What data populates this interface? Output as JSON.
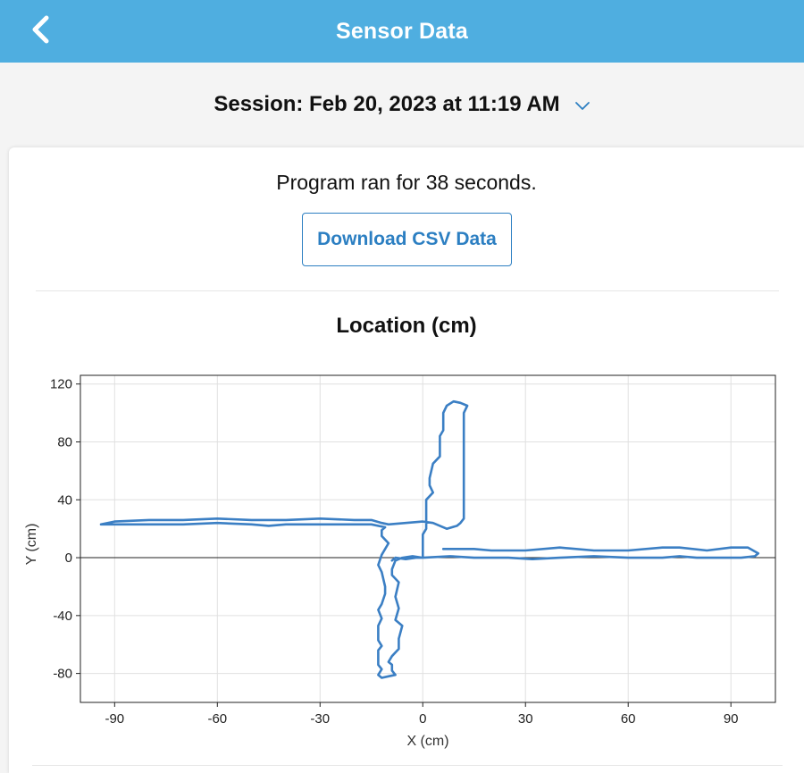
{
  "header": {
    "title": "Sensor Data",
    "back_icon": "chevron-left-icon"
  },
  "session": {
    "label": "Session: Feb 20, 2023 at 11:19 AM",
    "dropdown_icon": "chevron-down-icon"
  },
  "summary": {
    "run_text": "Program ran for 38 seconds."
  },
  "actions": {
    "download_label": "Download CSV Data"
  },
  "colors": {
    "header_bg": "#4faee0",
    "accent": "#2c7fc2",
    "line": "#3b7fc4"
  },
  "chart_data": {
    "type": "line",
    "title": "Location (cm)",
    "xlabel": "X (cm)",
    "ylabel": "Y (cm)",
    "xlim": [
      -100,
      103
    ],
    "ylim": [
      -100,
      126
    ],
    "xticks": [
      -90,
      -60,
      -30,
      0,
      30,
      60,
      90
    ],
    "yticks": [
      -80,
      -40,
      0,
      40,
      80,
      120
    ],
    "grid": true,
    "zero_line": true,
    "series": [
      {
        "points": [
          [
            6,
            6
          ],
          [
            15,
            6
          ],
          [
            20,
            5
          ],
          [
            30,
            5
          ],
          [
            40,
            7
          ],
          [
            50,
            5
          ],
          [
            60,
            5
          ],
          [
            70,
            7
          ],
          [
            75,
            7
          ],
          [
            83,
            5
          ],
          [
            90,
            7
          ],
          [
            95,
            7
          ],
          [
            98,
            3
          ],
          [
            97,
            1
          ],
          [
            93,
            0
          ],
          [
            90,
            0
          ],
          [
            80,
            0
          ],
          [
            75,
            1
          ],
          [
            70,
            0
          ],
          [
            60,
            0
          ],
          [
            50,
            1
          ],
          [
            40,
            0
          ],
          [
            32,
            -1
          ],
          [
            25,
            0
          ],
          [
            15,
            0
          ],
          [
            8,
            1
          ],
          [
            0,
            0
          ],
          [
            -3,
            1
          ],
          [
            -6,
            0
          ],
          [
            -8,
            -2
          ],
          [
            -9,
            -8
          ],
          [
            -9,
            -12
          ],
          [
            -7,
            -17
          ],
          [
            -8,
            -27
          ],
          [
            -7,
            -35
          ],
          [
            -8,
            -43
          ],
          [
            -6,
            -47
          ],
          [
            -7,
            -56
          ],
          [
            -7,
            -63
          ],
          [
            -9,
            -68
          ],
          [
            -10,
            -72
          ],
          [
            -9,
            -74
          ],
          [
            -9,
            -78
          ],
          [
            -8,
            -81
          ],
          [
            -10,
            -82
          ],
          [
            -12,
            -83
          ],
          [
            -13,
            -81
          ],
          [
            -12,
            -77
          ],
          [
            -13,
            -74
          ],
          [
            -13,
            -68
          ],
          [
            -13,
            -64
          ],
          [
            -12,
            -61
          ],
          [
            -13,
            -57
          ],
          [
            -13,
            -47
          ],
          [
            -12,
            -42
          ],
          [
            -13,
            -36
          ],
          [
            -12,
            -32
          ],
          [
            -11,
            -25
          ],
          [
            -11,
            -20
          ],
          [
            -12,
            -10
          ],
          [
            -13,
            -5
          ],
          [
            -12,
            2
          ],
          [
            -10,
            10
          ],
          [
            -12,
            15
          ],
          [
            -12,
            19
          ],
          [
            -11,
            21
          ],
          [
            -15,
            23
          ],
          [
            -20,
            23
          ],
          [
            -30,
            23
          ],
          [
            -40,
            23
          ],
          [
            -45,
            22
          ],
          [
            -50,
            23
          ],
          [
            -60,
            24
          ],
          [
            -70,
            23
          ],
          [
            -80,
            23
          ],
          [
            -94,
            23
          ],
          [
            -90,
            25
          ],
          [
            -80,
            26
          ],
          [
            -70,
            26
          ],
          [
            -60,
            27
          ],
          [
            -50,
            26
          ],
          [
            -40,
            26
          ],
          [
            -30,
            27
          ],
          [
            -20,
            26
          ],
          [
            -15,
            26
          ],
          [
            -12,
            24
          ],
          [
            -10,
            23
          ],
          [
            -5,
            24
          ],
          [
            0,
            25
          ],
          [
            3,
            24
          ],
          [
            5,
            22
          ],
          [
            7,
            20
          ],
          [
            10,
            22
          ],
          [
            11,
            24
          ],
          [
            12,
            27
          ],
          [
            12,
            40
          ],
          [
            12,
            60
          ],
          [
            12,
            80
          ],
          [
            12,
            100
          ],
          [
            13,
            105
          ],
          [
            11,
            107
          ],
          [
            9,
            108
          ],
          [
            7,
            105
          ],
          [
            6,
            100
          ],
          [
            6,
            88
          ],
          [
            5,
            84
          ],
          [
            5,
            75
          ],
          [
            5,
            70
          ],
          [
            3,
            65
          ],
          [
            2,
            55
          ],
          [
            2,
            50
          ],
          [
            3,
            45
          ],
          [
            1,
            40
          ],
          [
            1,
            30
          ],
          [
            1,
            20
          ],
          [
            0,
            16
          ],
          [
            0,
            10
          ],
          [
            0,
            5
          ],
          [
            0,
            0
          ],
          [
            -2,
            0
          ],
          [
            -5,
            -1
          ],
          [
            -8,
            0
          ],
          [
            -9,
            -2
          ]
        ]
      }
    ]
  }
}
